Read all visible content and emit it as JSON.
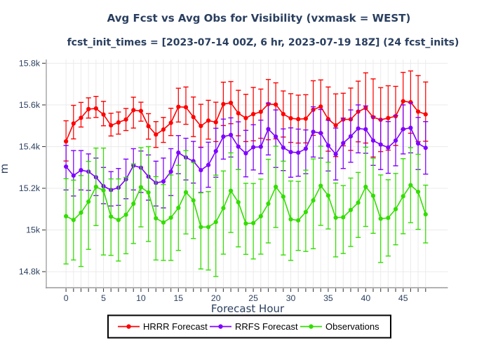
{
  "header": {
    "title": "Avg Fcst vs Avg Obs for Visibility (vxmask = WEST)",
    "subtitle": "fcst_init_times = [2023-07-14 00Z, 6 hr, 2023-07-19 18Z] (24 fcst_inits)"
  },
  "colors": {
    "text": "#2a3f5f",
    "axis_line": "#9a9a9a",
    "tick": "#444444",
    "grid": "#ebebeb",
    "legend_border": "#000000",
    "hrrr": "#ff0000",
    "rrfs": "#7f00ff",
    "obs": "#33dd00"
  },
  "legend": {
    "items": [
      {
        "label": "HRRR Forecast",
        "color": "#ff0000"
      },
      {
        "label": "RRFS Forecast",
        "color": "#7f00ff"
      },
      {
        "label": "Observations",
        "color": "#33dd00"
      }
    ]
  },
  "chart_data": {
    "type": "line",
    "title": "Avg Fcst vs Avg Obs for Visibility (vxmask = WEST)",
    "subtitle": "fcst_init_times = [2023-07-14 00Z, 6 hr, 2023-07-19 18Z] (24 fcst_inits)",
    "xlabel": "Forecast Hour",
    "ylabel": "m",
    "xlim": [
      -2.633,
      50.97
    ],
    "ylim": [
      14723,
      15818
    ],
    "grid": true,
    "legend_position": "bottom-center",
    "x": [
      0,
      1,
      2,
      3,
      4,
      5,
      6,
      7,
      8,
      9,
      10,
      11,
      12,
      13,
      14,
      15,
      16,
      17,
      18,
      19,
      20,
      21,
      22,
      23,
      24,
      25,
      26,
      27,
      28,
      29,
      30,
      31,
      32,
      33,
      34,
      35,
      36,
      37,
      38,
      39,
      40,
      41,
      42,
      43,
      44,
      45,
      46,
      47,
      48
    ],
    "xtick_labels": [
      0,
      5,
      10,
      15,
      20,
      25,
      30,
      35,
      40,
      45
    ],
    "yticks": [
      {
        "value": 14800,
        "label": "14.8k"
      },
      {
        "value": 15000,
        "label": "15k"
      },
      {
        "value": 15200,
        "label": "15.2k"
      },
      {
        "value": 15400,
        "label": "15.4k"
      },
      {
        "value": 15600,
        "label": "15.6k"
      },
      {
        "value": 15800,
        "label": "15.8k"
      }
    ],
    "series": [
      {
        "name": "HRRR Forecast",
        "color": "#ff0000",
        "values": [
          15425,
          15511,
          15538,
          15580,
          15583,
          15554,
          15502,
          15516,
          15530,
          15575,
          15571,
          15498,
          15458,
          15482,
          15514,
          15591,
          15589,
          15542,
          15499,
          15525,
          15517,
          15604,
          15610,
          15560,
          15537,
          15556,
          15567,
          15604,
          15602,
          15556,
          15536,
          15532,
          15534,
          15577,
          15592,
          15532,
          15502,
          15530,
          15531,
          15568,
          15585,
          15541,
          15529,
          15537,
          15546,
          15618,
          15613,
          15568,
          15555
        ],
        "err_hi": [
          15524,
          15598,
          15612,
          15634,
          15641,
          15617,
          15560,
          15566,
          15583,
          15637,
          15613,
          15558,
          15520,
          15540,
          15584,
          15680,
          15686,
          15638,
          15603,
          15622,
          15613,
          15709,
          15712,
          15670,
          15651,
          15684,
          15676,
          15722,
          15706,
          15667,
          15654,
          15647,
          15649,
          15716,
          15720,
          15686,
          15653,
          15656,
          15681,
          15714,
          15754,
          15725,
          15683,
          15692,
          15689,
          15756,
          15763,
          15741,
          15710
        ],
        "err_lo": [
          15331,
          15437,
          15494,
          15537,
          15540,
          15500,
          15451,
          15460,
          15477,
          15489,
          15522,
          15436,
          15396,
          15420,
          15453,
          15518,
          15507,
          15448,
          15397,
          15436,
          15424,
          15501,
          15510,
          15452,
          15424,
          15428,
          15440,
          15433,
          15437,
          15446,
          15420,
          15417,
          15418,
          15454,
          15464,
          15378,
          15352,
          15404,
          15382,
          15423,
          15417,
          15350,
          15376,
          15383,
          15406,
          15481,
          15464,
          15424,
          15426
        ]
      },
      {
        "name": "RRFS Forecast",
        "color": "#7f00ff",
        "values": [
          15304,
          15261,
          15287,
          15280,
          15253,
          15210,
          15192,
          15203,
          15243,
          15309,
          15299,
          15256,
          15226,
          15233,
          15280,
          15371,
          15348,
          15330,
          15287,
          15312,
          15378,
          15448,
          15456,
          15400,
          15368,
          15397,
          15399,
          15484,
          15448,
          15395,
          15374,
          15371,
          15390,
          15471,
          15465,
          15405,
          15364,
          15417,
          15449,
          15487,
          15483,
          15429,
          15410,
          15396,
          15429,
          15484,
          15490,
          15415,
          15394
        ],
        "err_hi": [
          15406,
          15381,
          15381,
          15365,
          15345,
          15300,
          15280,
          15295,
          15340,
          15390,
          15379,
          15360,
          15330,
          15345,
          15390,
          15453,
          15440,
          15425,
          15396,
          15421,
          15488,
          15532,
          15538,
          15519,
          15478,
          15505,
          15527,
          15609,
          15576,
          15485,
          15490,
          15484,
          15480,
          15591,
          15578,
          15527,
          15489,
          15537,
          15576,
          15600,
          15595,
          15545,
          15530,
          15520,
          15550,
          15600,
          15610,
          15540,
          15520
        ],
        "err_lo": [
          15192,
          15163,
          15192,
          15190,
          15165,
          15126,
          15115,
          15118,
          15150,
          15192,
          15180,
          15143,
          15115,
          15106,
          15165,
          15270,
          15240,
          15225,
          15180,
          15205,
          15253,
          15340,
          15350,
          15290,
          15255,
          15288,
          15270,
          15360,
          15300,
          15285,
          15253,
          15258,
          15270,
          15350,
          15345,
          15283,
          15240,
          15295,
          15325,
          15370,
          15368,
          15310,
          15290,
          15272,
          15308,
          15365,
          15370,
          15290,
          15268
        ]
      },
      {
        "name": "Observations",
        "color": "#33dd00",
        "values": [
          15066,
          15048,
          15083,
          15136,
          15207,
          15190,
          15064,
          15048,
          15073,
          15126,
          15205,
          15180,
          15056,
          15036,
          15059,
          15106,
          15181,
          15142,
          15014,
          15014,
          15038,
          15105,
          15188,
          15133,
          15031,
          15033,
          15066,
          15126,
          15207,
          15160,
          15051,
          15046,
          15086,
          15142,
          15212,
          15165,
          15059,
          15061,
          15096,
          15131,
          15207,
          15164,
          15054,
          15058,
          15100,
          15162,
          15215,
          15183,
          15075
        ],
        "err_hi": [
          15246,
          15239,
          15261,
          15329,
          15393,
          15393,
          15245,
          15245,
          15252,
          15317,
          15395,
          15400,
          15256,
          15218,
          15264,
          15310,
          15381,
          15325,
          15178,
          15184,
          15263,
          15283,
          15370,
          15290,
          15224,
          15223,
          15244,
          15339,
          15402,
          15330,
          15235,
          15233,
          15287,
          15341,
          15402,
          15325,
          15225,
          15213,
          15249,
          15276,
          15397,
          15344,
          15264,
          15241,
          15271,
          15342,
          15395,
          15363,
          15215
        ],
        "err_lo": [
          14837,
          14856,
          14825,
          14907,
          15021,
          14880,
          14878,
          14851,
          14886,
          14935,
          15015,
          14945,
          14856,
          14854,
          14854,
          14902,
          14981,
          14959,
          14813,
          14808,
          14777,
          14884,
          14988,
          14919,
          14883,
          14861,
          14884,
          14938,
          15012,
          14880,
          14854,
          14902,
          14897,
          14910,
          15022,
          15005,
          14871,
          14887,
          14921,
          14964,
          15017,
          14984,
          14844,
          14875,
          14929,
          14982,
          15035,
          15003,
          14938
        ]
      }
    ]
  }
}
